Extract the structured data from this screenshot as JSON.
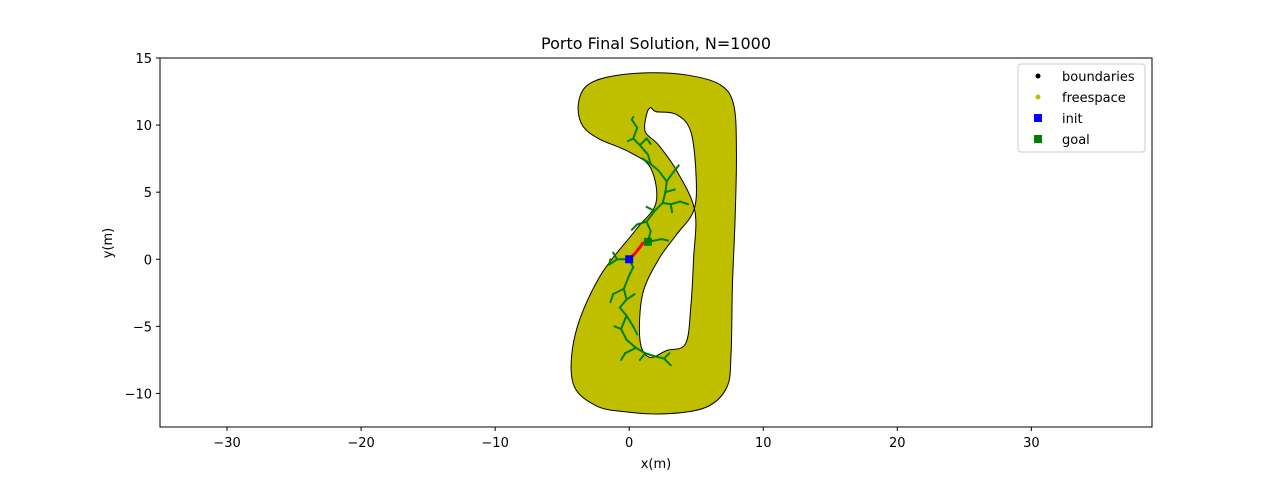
{
  "chart_data": {
    "type": "scatter",
    "title": "Porto Final Solution, N=1000",
    "xlabel": "x(m)",
    "ylabel": "y(m)",
    "xlim": [
      -35,
      39
    ],
    "ylim": [
      -12.5,
      15
    ],
    "xticks": [
      -30,
      -20,
      -10,
      0,
      10,
      20,
      30
    ],
    "xtick_labels": [
      "−30",
      "−20",
      "−10",
      "0",
      "10",
      "20",
      "30"
    ],
    "yticks": [
      -10,
      -5,
      0,
      5,
      10,
      15
    ],
    "ytick_labels": [
      "−10",
      "−5",
      "0",
      "5",
      "10",
      "15"
    ],
    "grid": false,
    "legend_position": "top-right",
    "colors": {
      "boundaries": "#000000",
      "freespace": "#bfbf00",
      "init": "#0000ff",
      "goal": "#008000",
      "tree": "#008000",
      "path": "#ff0000"
    },
    "legend": [
      {
        "label": "boundaries",
        "marker": "dot",
        "color": "#000000"
      },
      {
        "label": "freespace",
        "marker": "dot",
        "color": "#bfbf00"
      },
      {
        "label": "init",
        "marker": "square",
        "color": "#0000ff"
      },
      {
        "label": "goal",
        "marker": "square",
        "color": "#008000"
      }
    ],
    "track_outer": [
      [
        -3.8,
        11.5
      ],
      [
        -3.2,
        12.9
      ],
      [
        -1.5,
        13.6
      ],
      [
        1.5,
        13.9
      ],
      [
        4.5,
        13.7
      ],
      [
        6.8,
        13.0
      ],
      [
        7.8,
        11.5
      ],
      [
        8.0,
        8.0
      ],
      [
        7.9,
        3.0
      ],
      [
        7.7,
        -2.0
      ],
      [
        7.6,
        -7.0
      ],
      [
        7.3,
        -9.5
      ],
      [
        5.8,
        -11.0
      ],
      [
        3.0,
        -11.5
      ],
      [
        0.0,
        -11.4
      ],
      [
        -2.5,
        -10.9
      ],
      [
        -4.2,
        -9.2
      ],
      [
        -4.0,
        -5.5
      ],
      [
        -2.2,
        -1.3
      ],
      [
        0.5,
        2.2
      ],
      [
        2.0,
        4.2
      ],
      [
        1.6,
        6.8
      ],
      [
        0.0,
        8.0
      ],
      [
        -2.3,
        9.0
      ],
      [
        -3.5,
        10.0
      ]
    ],
    "track_inner": [
      [
        1.6,
        11.3
      ],
      [
        2.0,
        11.0
      ],
      [
        3.5,
        10.8
      ],
      [
        4.6,
        9.5
      ],
      [
        5.0,
        6.0
      ],
      [
        4.8,
        3.6
      ],
      [
        3.5,
        1.8
      ],
      [
        2.2,
        0.0
      ],
      [
        1.0,
        -2.6
      ],
      [
        0.8,
        -6.0
      ],
      [
        1.5,
        -7.3
      ],
      [
        2.8,
        -6.8
      ],
      [
        4.2,
        -6.3
      ],
      [
        4.6,
        -3.5
      ],
      [
        4.8,
        0.0
      ],
      [
        4.9,
        3.6
      ],
      [
        3.6,
        6.5
      ],
      [
        2.2,
        8.5
      ],
      [
        1.2,
        9.5
      ],
      [
        1.3,
        10.8
      ]
    ],
    "init": {
      "x": 0.0,
      "y": 0.0
    },
    "goal": {
      "x": 1.4,
      "y": 1.3
    },
    "solution_path": [
      [
        0.0,
        0.0
      ],
      [
        0.4,
        0.4
      ],
      [
        0.8,
        0.9
      ],
      [
        1.0,
        1.2
      ],
      [
        1.4,
        1.3
      ]
    ],
    "tree_edges": [
      [
        [
          0.0,
          0.0
        ],
        [
          -0.9,
          0.0
        ]
      ],
      [
        [
          -0.9,
          0.0
        ],
        [
          -1.5,
          -0.4
        ]
      ],
      [
        [
          -0.9,
          0.0
        ],
        [
          -1.2,
          0.5
        ]
      ],
      [
        [
          -1.5,
          -0.4
        ],
        [
          -1.4,
          0.0
        ]
      ],
      [
        [
          0.0,
          0.0
        ],
        [
          0.3,
          -0.6
        ]
      ],
      [
        [
          0.3,
          -0.6
        ],
        [
          0.0,
          -1.2
        ]
      ],
      [
        [
          0.0,
          -1.2
        ],
        [
          -0.4,
          -2.2
        ]
      ],
      [
        [
          -0.4,
          -2.2
        ],
        [
          -0.2,
          -3.0
        ]
      ],
      [
        [
          -0.2,
          -3.0
        ],
        [
          -0.7,
          -3.6
        ]
      ],
      [
        [
          -0.7,
          -3.6
        ],
        [
          -0.2,
          -4.2
        ]
      ],
      [
        [
          -0.2,
          -4.2
        ],
        [
          -0.6,
          -5.2
        ]
      ],
      [
        [
          -0.6,
          -5.2
        ],
        [
          -0.2,
          -6.0
        ]
      ],
      [
        [
          -0.2,
          -6.0
        ],
        [
          0.5,
          -6.6
        ]
      ],
      [
        [
          0.5,
          -6.6
        ],
        [
          1.2,
          -7.0
        ]
      ],
      [
        [
          1.2,
          -7.0
        ],
        [
          1.8,
          -7.2
        ]
      ],
      [
        [
          1.8,
          -7.2
        ],
        [
          2.6,
          -7.4
        ]
      ],
      [
        [
          2.6,
          -7.4
        ],
        [
          3.1,
          -7.9
        ]
      ],
      [
        [
          2.6,
          -7.4
        ],
        [
          3.0,
          -7.0
        ]
      ],
      [
        [
          1.2,
          -7.0
        ],
        [
          0.8,
          -7.5
        ]
      ],
      [
        [
          0.5,
          -6.6
        ],
        [
          -0.3,
          -7.0
        ]
      ],
      [
        [
          -0.3,
          -7.0
        ],
        [
          -0.6,
          -7.5
        ]
      ],
      [
        [
          -0.4,
          -2.2
        ],
        [
          -1.2,
          -2.6
        ]
      ],
      [
        [
          -1.2,
          -2.6
        ],
        [
          -1.4,
          -3.2
        ]
      ],
      [
        [
          -0.6,
          -5.2
        ],
        [
          -1.1,
          -5.0
        ]
      ],
      [
        [
          -0.2,
          -4.2
        ],
        [
          0.3,
          -5.0
        ]
      ],
      [
        [
          0.3,
          -5.0
        ],
        [
          0.6,
          -5.6
        ]
      ],
      [
        [
          -0.2,
          -3.0
        ],
        [
          0.4,
          -2.6
        ]
      ],
      [
        [
          1.4,
          1.3
        ],
        [
          2.4,
          1.5
        ]
      ],
      [
        [
          2.4,
          1.5
        ],
        [
          2.9,
          1.4
        ]
      ],
      [
        [
          1.4,
          1.3
        ],
        [
          1.6,
          2.1
        ]
      ],
      [
        [
          1.6,
          2.1
        ],
        [
          1.3,
          2.8
        ]
      ],
      [
        [
          1.3,
          2.8
        ],
        [
          1.9,
          3.6
        ]
      ],
      [
        [
          1.9,
          3.6
        ],
        [
          2.5,
          4.2
        ]
      ],
      [
        [
          2.5,
          4.2
        ],
        [
          3.1,
          4.1
        ]
      ],
      [
        [
          3.1,
          4.1
        ],
        [
          3.8,
          4.3
        ]
      ],
      [
        [
          3.8,
          4.3
        ],
        [
          4.4,
          4.1
        ]
      ],
      [
        [
          3.1,
          4.1
        ],
        [
          3.2,
          3.5
        ]
      ],
      [
        [
          2.5,
          4.2
        ],
        [
          2.7,
          5.0
        ]
      ],
      [
        [
          2.7,
          5.0
        ],
        [
          2.8,
          5.8
        ]
      ],
      [
        [
          2.8,
          5.8
        ],
        [
          3.3,
          6.5
        ]
      ],
      [
        [
          3.3,
          6.5
        ],
        [
          3.7,
          7.0
        ]
      ],
      [
        [
          2.8,
          5.8
        ],
        [
          2.2,
          6.6
        ]
      ],
      [
        [
          2.2,
          6.6
        ],
        [
          1.6,
          7.1
        ]
      ],
      [
        [
          1.6,
          7.1
        ],
        [
          1.0,
          7.5
        ]
      ],
      [
        [
          1.6,
          7.1
        ],
        [
          1.4,
          7.8
        ]
      ],
      [
        [
          1.4,
          7.8
        ],
        [
          0.8,
          8.5
        ]
      ],
      [
        [
          0.8,
          8.5
        ],
        [
          0.3,
          9.0
        ]
      ],
      [
        [
          0.3,
          9.0
        ],
        [
          0.6,
          9.8
        ]
      ],
      [
        [
          0.6,
          9.8
        ],
        [
          0.2,
          10.4
        ]
      ],
      [
        [
          0.2,
          10.4
        ],
        [
          0.3,
          10.6
        ]
      ],
      [
        [
          0.8,
          8.5
        ],
        [
          1.3,
          9.0
        ]
      ],
      [
        [
          1.3,
          9.0
        ],
        [
          1.6,
          8.6
        ]
      ],
      [
        [
          0.3,
          9.0
        ],
        [
          -0.1,
          8.8
        ]
      ],
      [
        [
          1.3,
          2.8
        ],
        [
          0.6,
          2.6
        ]
      ],
      [
        [
          0.6,
          2.6
        ],
        [
          0.2,
          2.2
        ]
      ],
      [
        [
          1.9,
          3.6
        ],
        [
          1.3,
          3.9
        ]
      ],
      [
        [
          2.7,
          5.0
        ],
        [
          3.4,
          5.2
        ]
      ]
    ]
  }
}
